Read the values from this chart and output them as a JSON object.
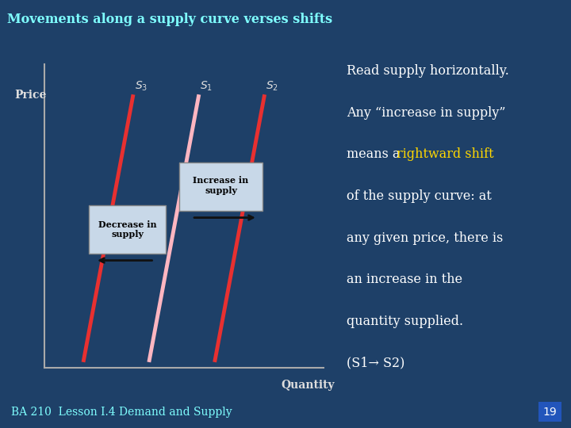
{
  "title": "Movements along a supply curve verses shifts",
  "title_color": "#7FFFFF",
  "title_bg": "#2a2a3e",
  "bg_color": "#1e4068",
  "price_label": "Price",
  "quantity_label": "Quantity",
  "footer_text": "BA 210  Lesson I.4 Demand and Supply",
  "footer_page": "19",
  "footer_text_color": "#7FFFFF",
  "footer_bg": "#353555",
  "footer_page_bg": "#2255bb",
  "s1_color": "#ffb6c1",
  "s2_color": "#e83030",
  "s3_color": "#e83030",
  "label_color": "#dddddd",
  "axis_color": "#aaaaaa",
  "right_text_color": "#ffffff",
  "highlight_color": "#FFD700",
  "box_facecolor": "#c8d8e8",
  "box_edgecolor": "#888888",
  "arrow_color": "#111111"
}
